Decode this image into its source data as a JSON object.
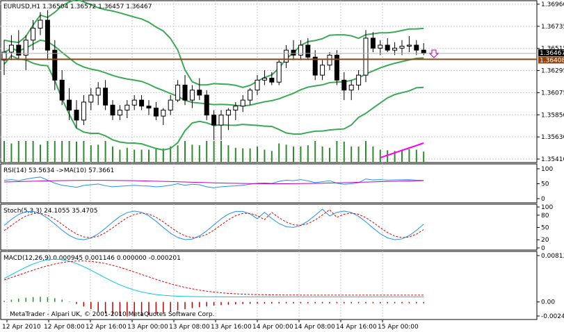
{
  "main": {
    "title": "EURUSD,H1  1.36504 1.36572 1.36457 1.36467",
    "yticks": [
      "1.36960",
      "1.36735",
      "1.36515",
      "1.36295",
      "1.36075",
      "1.35850",
      "1.35630",
      "1.35410"
    ],
    "ylim": [
      1.3541,
      1.3696
    ],
    "current_price": "1.36467",
    "hline_price": "1.36408",
    "hline_value": 1.36408,
    "current_value": 1.36467,
    "colors": {
      "up": "#ffffff",
      "down": "#000000",
      "bands": "#3aaa55",
      "hline": "#8b4513",
      "volume": "#2e8b2e",
      "ma": "#ff00ff",
      "arrow": "#b000b0"
    }
  },
  "rsi": {
    "label": "RSI(14) 53.5634  ->MA(10) 57.3661",
    "yticks": [
      "100",
      "50",
      "0"
    ]
  },
  "stoch": {
    "label": "Stoch(5,3,3) 24.1055 35.4705",
    "yticks": [
      "100",
      "80",
      "50",
      "20",
      "0"
    ]
  },
  "macd": {
    "label": "MACD(12,26,9) 0.000945 0.001146 0.000000 -0.000201",
    "yticks": [
      "0.00813",
      "0.00",
      "-0.00247"
    ]
  },
  "footer": {
    "copyright": "MetaTrader - Alpari UK, © 2001-2010 MetaQuotes Software Corp."
  },
  "xticks": [
    "12 Apr 2010",
    "12 Apr 08:00",
    "12 Apr 16:00",
    "13 Apr 00:00",
    "13 Apr 08:00",
    "13 Apr 16:00",
    "14 Apr 00:00",
    "14 Apr 08:00",
    "14 Apr 16:00",
    "15 Apr 00:00"
  ],
  "chart_data": {
    "type": "candlestick",
    "symbol": "EURUSD",
    "timeframe": "H1",
    "ylim": [
      1.3541,
      1.3696
    ],
    "ohlc": [
      [
        1.364,
        1.366,
        1.3625,
        1.3648
      ],
      [
        1.3648,
        1.3665,
        1.364,
        1.3655
      ],
      [
        1.3655,
        1.367,
        1.364,
        1.3645
      ],
      [
        1.3645,
        1.3665,
        1.363,
        1.366
      ],
      [
        1.366,
        1.368,
        1.365,
        1.3672
      ],
      [
        1.3672,
        1.3688,
        1.3665,
        1.368
      ],
      [
        1.368,
        1.369,
        1.364,
        1.365
      ],
      [
        1.365,
        1.366,
        1.361,
        1.362
      ],
      [
        1.362,
        1.363,
        1.3595,
        1.36
      ],
      [
        1.36,
        1.3612,
        1.358,
        1.359
      ],
      [
        1.359,
        1.36,
        1.3572,
        1.358
      ],
      [
        1.358,
        1.3605,
        1.3575,
        1.3598
      ],
      [
        1.3598,
        1.3612,
        1.359,
        1.3605
      ],
      [
        1.3605,
        1.3618,
        1.3595,
        1.3612
      ],
      [
        1.3612,
        1.362,
        1.359,
        1.3595
      ],
      [
        1.3595,
        1.36,
        1.358,
        1.3585
      ],
      [
        1.3585,
        1.3595,
        1.358,
        1.359
      ],
      [
        1.359,
        1.36,
        1.3582,
        1.3595
      ],
      [
        1.3595,
        1.3605,
        1.359,
        1.36
      ],
      [
        1.36,
        1.3605,
        1.359,
        1.3594
      ],
      [
        1.3594,
        1.36,
        1.3585,
        1.3592
      ],
      [
        1.3592,
        1.3598,
        1.358,
        1.3584
      ],
      [
        1.3584,
        1.3592,
        1.3575,
        1.359
      ],
      [
        1.359,
        1.3605,
        1.3585,
        1.36
      ],
      [
        1.36,
        1.362,
        1.3598,
        1.3615
      ],
      [
        1.3615,
        1.3625,
        1.3595,
        1.36
      ],
      [
        1.36,
        1.3615,
        1.3592,
        1.361
      ],
      [
        1.361,
        1.3622,
        1.36,
        1.3605
      ],
      [
        1.3605,
        1.361,
        1.358,
        1.3585
      ],
      [
        1.3585,
        1.359,
        1.356,
        1.3575
      ],
      [
        1.3575,
        1.359,
        1.356,
        1.3585
      ],
      [
        1.3585,
        1.3592,
        1.357,
        1.359
      ],
      [
        1.359,
        1.3598,
        1.358,
        1.3594
      ],
      [
        1.3594,
        1.3605,
        1.3588,
        1.36
      ],
      [
        1.36,
        1.3612,
        1.3595,
        1.361
      ],
      [
        1.361,
        1.3625,
        1.3605,
        1.362
      ],
      [
        1.362,
        1.363,
        1.3615,
        1.3622
      ],
      [
        1.3622,
        1.3628,
        1.3615,
        1.3618
      ],
      [
        1.3618,
        1.364,
        1.3615,
        1.3638
      ],
      [
        1.3638,
        1.3655,
        1.3632,
        1.365
      ],
      [
        1.365,
        1.366,
        1.364,
        1.3645
      ],
      [
        1.3645,
        1.366,
        1.364,
        1.3655
      ],
      [
        1.3655,
        1.3662,
        1.364,
        1.3643
      ],
      [
        1.3643,
        1.365,
        1.362,
        1.3625
      ],
      [
        1.3625,
        1.364,
        1.362,
        1.3635
      ],
      [
        1.3635,
        1.3648,
        1.363,
        1.3645
      ],
      [
        1.3645,
        1.365,
        1.3615,
        1.362
      ],
      [
        1.362,
        1.3628,
        1.36,
        1.361
      ],
      [
        1.361,
        1.362,
        1.36,
        1.3615
      ],
      [
        1.3615,
        1.363,
        1.361,
        1.3625
      ],
      [
        1.3625,
        1.367,
        1.3618,
        1.3662
      ],
      [
        1.3662,
        1.3668,
        1.3648,
        1.3652
      ],
      [
        1.3652,
        1.366,
        1.3645,
        1.3655
      ],
      [
        1.3655,
        1.3662,
        1.3648,
        1.365
      ],
      [
        1.365,
        1.3658,
        1.3645,
        1.3652
      ],
      [
        1.3652,
        1.366,
        1.3645,
        1.3654
      ],
      [
        1.3654,
        1.3664,
        1.3648,
        1.3655
      ],
      [
        1.3655,
        1.366,
        1.3645,
        1.365
      ],
      [
        1.365,
        1.3657,
        1.3645,
        1.3647
      ]
    ]
  }
}
